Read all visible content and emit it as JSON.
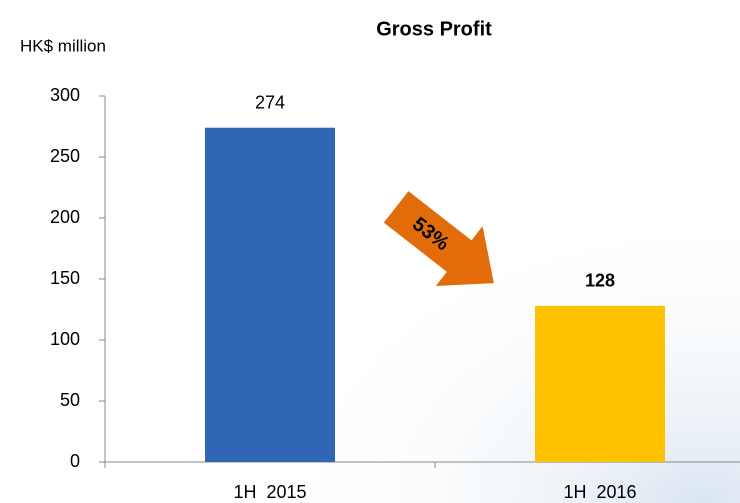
{
  "chart_data": {
    "type": "bar",
    "title": "Gross Profit",
    "y_label": "HK$ million",
    "categories": [
      "1H  2015",
      "1H  2016"
    ],
    "values": [
      274,
      128
    ],
    "colors": [
      "#2f67b4",
      "#ffc000"
    ],
    "bold_values": [
      false,
      true
    ],
    "ylim": [
      0,
      300
    ],
    "yticks": [
      0,
      50,
      100,
      150,
      200,
      250,
      300
    ],
    "annotation": "53%",
    "annotation_color": "#e36c0a"
  }
}
